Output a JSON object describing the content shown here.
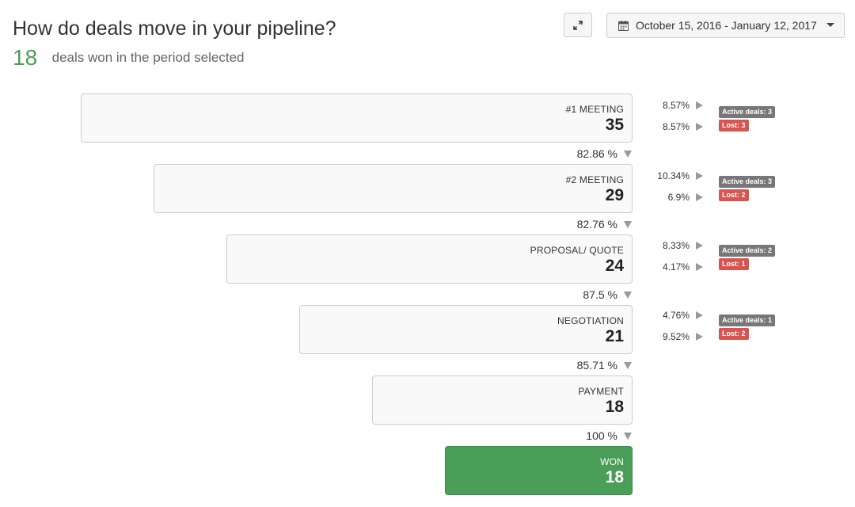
{
  "header": {
    "title": "How do deals move in your pipeline?",
    "won_count": "18",
    "won_text": "deals won in the period selected"
  },
  "toolbar": {
    "expand_icon": "expand-icon",
    "date_range": "October 15, 2016 - January 12, 2017",
    "calendar_icon": "calendar-icon",
    "dropdown_icon": "caret-down-icon"
  },
  "stages": [
    {
      "name": "#1 MEETING",
      "count": "35"
    },
    {
      "name": "#2 MEETING",
      "count": "29"
    },
    {
      "name": "PROPOSAL/ QUOTE",
      "count": "24"
    },
    {
      "name": "NEGOTIATION",
      "count": "21"
    },
    {
      "name": "PAYMENT",
      "count": "18"
    },
    {
      "name": "WON",
      "count": "18"
    }
  ],
  "conversions": [
    "82.86 %",
    "82.76 %",
    "87.5 %",
    "85.71 %",
    "100 %"
  ],
  "side_stats": [
    {
      "active_pct": "8.57%",
      "active_label": "Active deals: 3",
      "lost_pct": "8.57%",
      "lost_label": "Lost: 3"
    },
    {
      "active_pct": "10.34%",
      "active_label": "Active deals: 3",
      "lost_pct": "6.9%",
      "lost_label": "Lost: 2"
    },
    {
      "active_pct": "8.33%",
      "active_label": "Active deals: 2",
      "lost_pct": "4.17%",
      "lost_label": "Lost: 1"
    },
    {
      "active_pct": "4.76%",
      "active_label": "Active deals: 1",
      "lost_pct": "9.52%",
      "lost_label": "Lost: 2"
    }
  ],
  "colors": {
    "won": "#4a9e58",
    "lost_badge": "#d9534f",
    "active_badge": "#777777"
  }
}
